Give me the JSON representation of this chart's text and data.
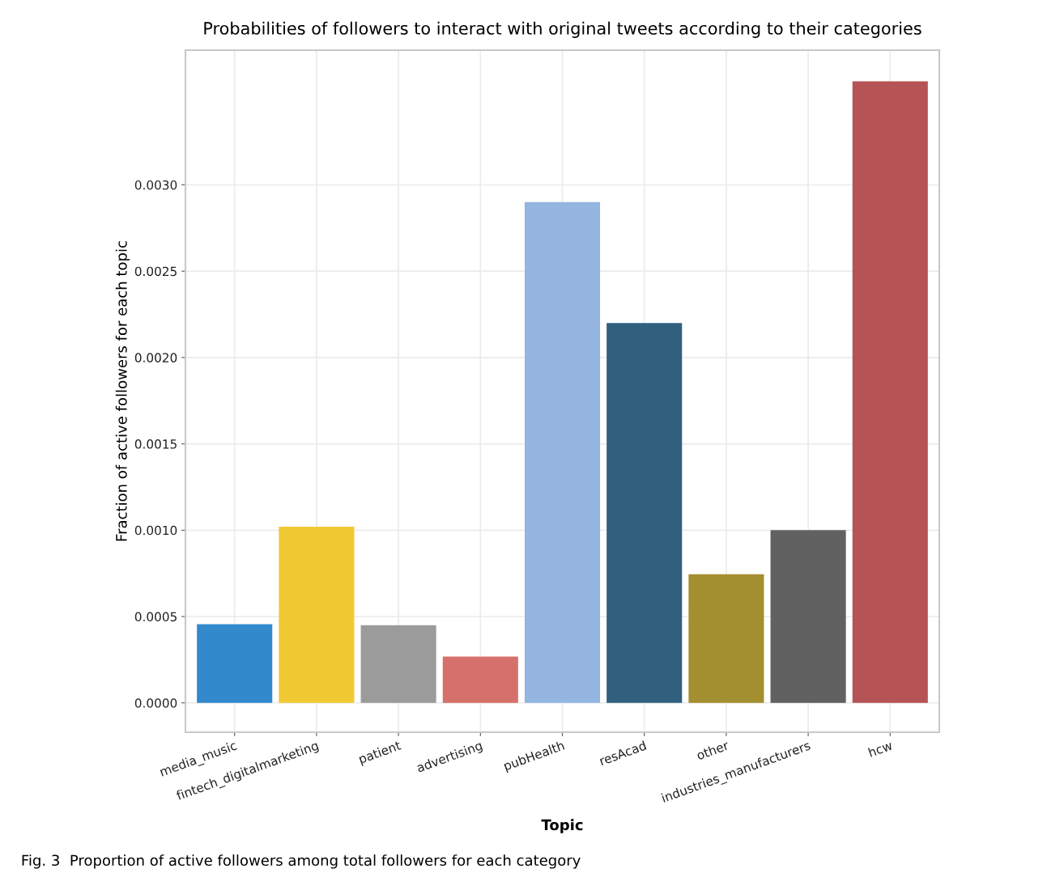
{
  "chart_data": {
    "type": "bar",
    "title": "Probabilities of followers to interact with original tweets according to their categories",
    "xlabel": "Topic",
    "ylabel": "Fraction of active followers for each topic",
    "categories": [
      "media_music",
      "fintech_digitalmarketing",
      "patient",
      "advertising",
      "pubHealth",
      "resAcad",
      "other",
      "industries_manufacturers",
      "hcw"
    ],
    "values": [
      0.000455,
      0.00102,
      0.00045,
      0.000268,
      0.0029,
      0.0022,
      0.000745,
      0.001,
      0.0036
    ],
    "colors": [
      "#3289cc",
      "#f1c932",
      "#9b9b9b",
      "#d6706a",
      "#93b5e0",
      "#31607f",
      "#a48f30",
      "#616161",
      "#b65354"
    ],
    "ylim": [
      -0.00017,
      0.00378
    ],
    "yticks": [
      {
        "value": 0,
        "label": "0.0000"
      },
      {
        "value": 0.0005,
        "label": "0.0005"
      },
      {
        "value": 0.001,
        "label": "0.0010"
      },
      {
        "value": 0.0015,
        "label": "0.0015"
      },
      {
        "value": 0.002,
        "label": "0.0020"
      },
      {
        "value": 0.0025,
        "label": "0.0025"
      },
      {
        "value": 0.003,
        "label": "0.0030"
      }
    ],
    "grid": true,
    "annotations": [
      "Fig. 3  Proportion of active followers among total followers for each category"
    ]
  }
}
